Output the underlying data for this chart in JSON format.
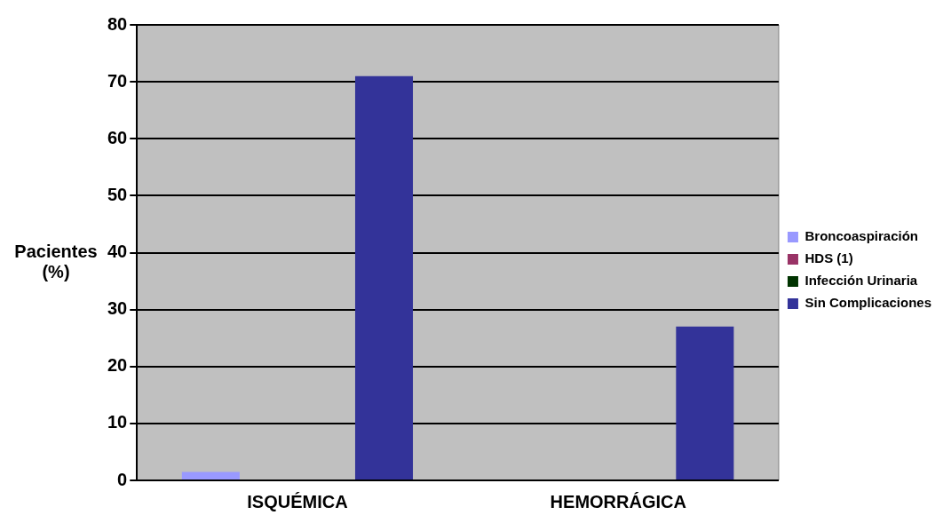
{
  "chart_data": {
    "type": "bar",
    "ylabel": "Pacientes (%)",
    "categories": [
      "ISQUÉMICA",
      "HEMORRÁGICA"
    ],
    "series": [
      {
        "name": "Broncoaspiración",
        "color": "#9999ff",
        "values": [
          1.5,
          0
        ]
      },
      {
        "name": "HDS (1)",
        "color": "#993366",
        "values": [
          0,
          0
        ]
      },
      {
        "name": "Infección Urinaria",
        "color": "#003300",
        "values": [
          0,
          0
        ]
      },
      {
        "name": "Sin Complicaciones",
        "color": "#333399",
        "values": [
          71,
          27
        ]
      }
    ],
    "ylim": [
      0,
      80
    ],
    "yticks": [
      0,
      10,
      20,
      30,
      40,
      50,
      60,
      70,
      80
    ],
    "grid": "y",
    "legend": "right"
  }
}
